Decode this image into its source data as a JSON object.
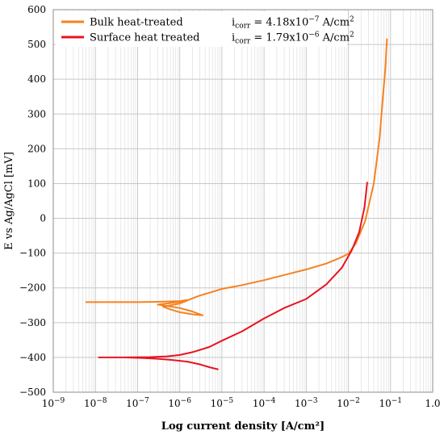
{
  "chart_data": {
    "type": "line",
    "xlabel": "Log current density  [A/cm²]",
    "ylabel": "E vs Ag/AgCl [mV]",
    "x_scale": "log",
    "xlim": [
      1e-09,
      1.0
    ],
    "ylim": [
      -500,
      600
    ],
    "y_ticks": [
      600,
      500,
      400,
      300,
      200,
      100,
      0,
      -100,
      -200,
      -300,
      -400,
      -500
    ],
    "y_tick_labels": [
      "600",
      "500",
      "400",
      "300",
      "200",
      "100",
      "0",
      "−100",
      "−200",
      "−300",
      "−400",
      "−500"
    ],
    "x_ticks": [
      1e-09,
      1e-08,
      1e-07,
      1e-06,
      1e-05,
      0.0001,
      0.001,
      0.01,
      0.1,
      1.0
    ],
    "x_tick_labels": [
      {
        "base": "10",
        "exp": "−9"
      },
      {
        "base": "10",
        "exp": "−8"
      },
      {
        "base": "10",
        "exp": "−7"
      },
      {
        "base": "10",
        "exp": "−6"
      },
      {
        "base": "10",
        "exp": "−5"
      },
      {
        "base": "10",
        "exp": "−4"
      },
      {
        "base": "10",
        "exp": "−3"
      },
      {
        "base": "10",
        "exp": "−2"
      },
      {
        "base": "10",
        "exp": "−1"
      },
      {
        "base": "1.0",
        "exp": ""
      }
    ],
    "grid": true,
    "legend_position": "top-left",
    "series": [
      {
        "name": "Bulk heat-treated",
        "color": "#f58220",
        "icorr_label": "i",
        "icorr_sub": "corr",
        "icorr_value": " = 4.18x10",
        "icorr_exp": "−7",
        "icorr_unit": " A/cm",
        "icorr_unit_exp": "2",
        "x": [
          6e-09,
          3e-08,
          1e-07,
          3e-07,
          1e-06,
          1.5e-06,
          1e-06,
          5e-07,
          3e-07,
          5e-07,
          1e-06,
          2e-06,
          3.5e-06,
          2e-06,
          1e-06,
          6e-07,
          4e-07,
          6e-07,
          1e-06,
          1.4e-06,
          2e-06,
          3e-06,
          5e-06,
          1e-05,
          3e-05,
          0.0001,
          0.0003,
          0.001,
          0.003,
          0.006,
          0.01,
          0.015,
          0.025,
          0.04,
          0.055,
          0.065,
          0.075,
          0.082
        ],
        "y": [
          -241,
          -241,
          -241,
          -240,
          -238,
          -235,
          -240,
          -245,
          -248,
          -252,
          -258,
          -268,
          -279,
          -276,
          -270,
          -262,
          -254,
          -250,
          -245,
          -238,
          -230,
          -222,
          -214,
          -203,
          -192,
          -178,
          -163,
          -147,
          -130,
          -115,
          -102,
          -72,
          -8,
          100,
          230,
          340,
          430,
          515
        ]
      },
      {
        "name": "Surface heat treated",
        "color": "#e8131f",
        "icorr_label": "i",
        "icorr_sub": "corr",
        "icorr_value": " = 1.79x10",
        "icorr_exp": "−6",
        "icorr_unit": " A/cm",
        "icorr_unit_exp": "2",
        "x": [
          8e-06,
          5e-06,
          3e-06,
          1.5e-06,
          6e-07,
          3e-07,
          1.5e-07,
          5e-08,
          1.2e-08,
          5e-08,
          2e-07,
          5e-07,
          1e-06,
          2e-06,
          5e-06,
          1e-05,
          3e-05,
          0.0001,
          0.0003,
          0.001,
          0.003,
          0.007,
          0.012,
          0.018,
          0.024,
          0.028
        ],
        "y": [
          -434,
          -428,
          -420,
          -412,
          -407,
          -404,
          -402,
          -400,
          -400,
          -400,
          -399,
          -397,
          -393,
          -385,
          -370,
          -352,
          -325,
          -288,
          -258,
          -232,
          -190,
          -142,
          -92,
          -40,
          30,
          103
        ]
      }
    ]
  }
}
